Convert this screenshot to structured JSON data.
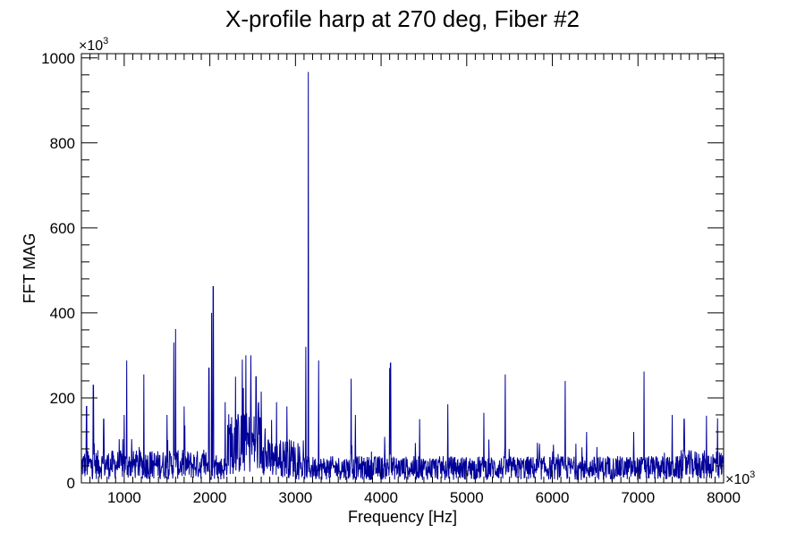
{
  "chart_data": {
    "type": "line",
    "title": "X-profile harp at 270 deg, Fiber #2",
    "xlabel": "Frequency [Hz]",
    "ylabel": "FFT MAG",
    "x_multiplier_label": "×10",
    "x_multiplier_exp": "3",
    "y_multiplier_label": "×10",
    "y_multiplier_exp": "3",
    "xlim": [
      500,
      8000
    ],
    "ylim": [
      0,
      1010
    ],
    "x_ticks": [
      1000,
      2000,
      3000,
      4000,
      5000,
      6000,
      7000,
      8000
    ],
    "x_tick_labels": [
      "1000",
      "2000",
      "3000",
      "4000",
      "5000",
      "6000",
      "7000",
      "8000"
    ],
    "y_ticks": [
      0,
      200,
      400,
      600,
      800,
      1000
    ],
    "y_tick_labels": [
      "0",
      "200",
      "400",
      "600",
      "800",
      "1000"
    ],
    "grid": false,
    "line_color": "#000099",
    "series": [
      {
        "peaks": [
          [
            560,
            180
          ],
          [
            640,
            230
          ],
          [
            760,
            150
          ],
          [
            1000,
            160
          ],
          [
            1030,
            288
          ],
          [
            1230,
            255
          ],
          [
            1500,
            160
          ],
          [
            1580,
            330
          ],
          [
            1600,
            362
          ],
          [
            1700,
            180
          ],
          [
            1990,
            270
          ],
          [
            2020,
            400
          ],
          [
            2040,
            462
          ],
          [
            2180,
            190
          ],
          [
            2300,
            250
          ],
          [
            2380,
            290
          ],
          [
            2420,
            300
          ],
          [
            2480,
            300
          ],
          [
            2540,
            250
          ],
          [
            2600,
            215
          ],
          [
            2780,
            190
          ],
          [
            2900,
            180
          ],
          [
            3120,
            320
          ],
          [
            3150,
            967
          ],
          [
            3270,
            288
          ],
          [
            3650,
            245
          ],
          [
            3700,
            160
          ],
          [
            4100,
            270
          ],
          [
            4110,
            282
          ],
          [
            4450,
            150
          ],
          [
            4780,
            185
          ],
          [
            5200,
            165
          ],
          [
            5450,
            255
          ],
          [
            6150,
            240
          ],
          [
            6400,
            120
          ],
          [
            6950,
            120
          ],
          [
            7070,
            262
          ],
          [
            7400,
            160
          ],
          [
            7540,
            150
          ],
          [
            7800,
            158
          ],
          [
            7930,
            152
          ]
        ]
      }
    ]
  }
}
